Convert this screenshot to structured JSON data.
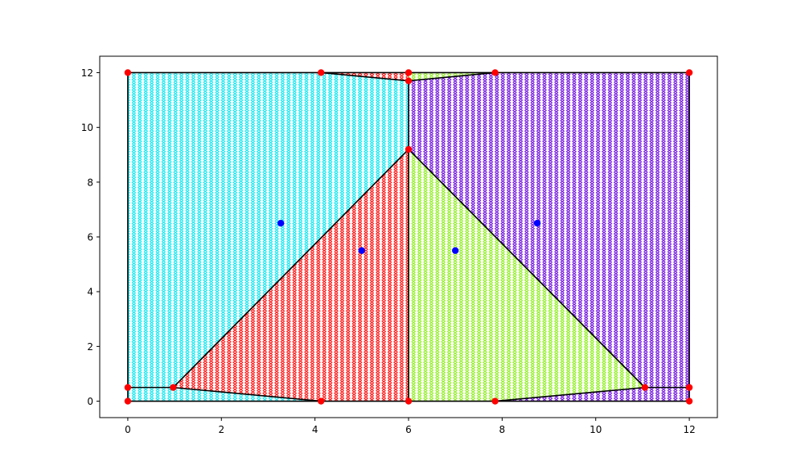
{
  "chart_data": {
    "type": "scatter",
    "title": "",
    "xlabel": "",
    "ylabel": "",
    "xlim": [
      -0.6,
      12.6
    ],
    "ylim": [
      -0.6,
      12.6
    ],
    "xticks": [
      "0",
      "2",
      "4",
      "6",
      "8",
      "10",
      "12"
    ],
    "yticks": [
      "0",
      "2",
      "4",
      "6",
      "8",
      "10",
      "12"
    ],
    "grid": false,
    "legend": "none",
    "colors": {
      "cyan": "#00e5ee",
      "red": "#ff0000",
      "green": "#88ee11",
      "purple": "#6600dd",
      "edges": "#000000",
      "vertices": "#ff0000",
      "centers": "#0000ff"
    },
    "regions": [
      {
        "color": "cyan",
        "polygon": [
          [
            0,
            0
          ],
          [
            0,
            0.5
          ],
          [
            0.97,
            0.5
          ],
          [
            6,
            9.2
          ],
          [
            6,
            11.7
          ],
          [
            4.13,
            12
          ],
          [
            0,
            12
          ]
        ]
      },
      {
        "color": "cyan",
        "polygon": [
          [
            0,
            0
          ],
          [
            4.13,
            0
          ],
          [
            0.97,
            0.5
          ],
          [
            0,
            0.5
          ]
        ]
      },
      {
        "color": "red",
        "polygon": [
          [
            0.97,
            0.5
          ],
          [
            4.13,
            0
          ],
          [
            6,
            0
          ],
          [
            6,
            9.2
          ]
        ]
      },
      {
        "color": "red",
        "polygon": [
          [
            4.13,
            12
          ],
          [
            6,
            11.7
          ],
          [
            6,
            12
          ]
        ]
      },
      {
        "color": "green",
        "polygon": [
          [
            6,
            0
          ],
          [
            7.85,
            0
          ],
          [
            11.05,
            0.5
          ],
          [
            6,
            9.2
          ]
        ]
      },
      {
        "color": "green",
        "polygon": [
          [
            6,
            11.7
          ],
          [
            7.85,
            12
          ],
          [
            6,
            12
          ]
        ]
      },
      {
        "color": "purple",
        "polygon": [
          [
            6,
            9.2
          ],
          [
            11.05,
            0.5
          ],
          [
            12,
            0.5
          ],
          [
            12,
            12
          ],
          [
            7.85,
            12
          ],
          [
            6,
            11.7
          ]
        ]
      },
      {
        "color": "purple",
        "polygon": [
          [
            7.85,
            0
          ],
          [
            12,
            0
          ],
          [
            12,
            0.5
          ],
          [
            11.05,
            0.5
          ]
        ]
      }
    ],
    "edges": [
      [
        [
          0,
          0
        ],
        [
          0,
          12
        ]
      ],
      [
        [
          0,
          12
        ],
        [
          12,
          12
        ]
      ],
      [
        [
          12,
          12
        ],
        [
          12,
          0
        ]
      ],
      [
        [
          0,
          0
        ],
        [
          12,
          0
        ]
      ],
      [
        [
          0,
          0.5
        ],
        [
          0.97,
          0.5
        ]
      ],
      [
        [
          0.97,
          0.5
        ],
        [
          6,
          9.2
        ]
      ],
      [
        [
          6,
          9.2
        ],
        [
          11.05,
          0.5
        ]
      ],
      [
        [
          11.05,
          0.5
        ],
        [
          12,
          0.5
        ]
      ],
      [
        [
          6,
          0
        ],
        [
          6,
          11.7
        ]
      ],
      [
        [
          0.97,
          0.5
        ],
        [
          4.13,
          0
        ]
      ],
      [
        [
          7.85,
          0
        ],
        [
          11.05,
          0.5
        ]
      ],
      [
        [
          4.13,
          12
        ],
        [
          6,
          11.7
        ]
      ],
      [
        [
          6,
          11.7
        ],
        [
          7.85,
          12
        ]
      ]
    ],
    "vertices": [
      [
        0,
        0
      ],
      [
        0,
        0.5
      ],
      [
        0,
        12
      ],
      [
        0.97,
        0.5
      ],
      [
        4.13,
        0
      ],
      [
        4.13,
        12
      ],
      [
        6,
        0
      ],
      [
        6,
        9.2
      ],
      [
        6,
        11.7
      ],
      [
        6,
        12
      ],
      [
        7.85,
        0
      ],
      [
        7.85,
        12
      ],
      [
        11.05,
        0.5
      ],
      [
        12,
        0
      ],
      [
        12,
        0.5
      ],
      [
        12,
        12
      ]
    ],
    "centers": [
      [
        3.27,
        6.5
      ],
      [
        5,
        5.5
      ],
      [
        7,
        5.5
      ],
      [
        8.75,
        6.5
      ]
    ]
  }
}
